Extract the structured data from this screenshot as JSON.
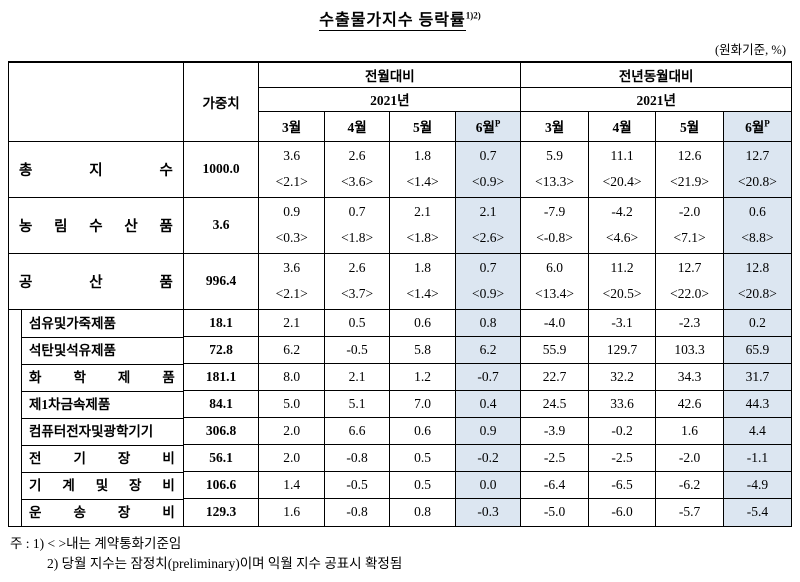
{
  "colors": {
    "highlight_column": "#dce6f1"
  },
  "title": {
    "text": "수출물가지수 등락률",
    "superscript": "1)2)"
  },
  "unit_note": "(원화기준, %)",
  "table": {
    "weight_header": "가중치",
    "group_headers": [
      "전월대비",
      "전년동월대비"
    ],
    "year_header": "2021년",
    "months": [
      "3월",
      "4월",
      "5월",
      "6월"
    ],
    "provisional_mark": "P"
  },
  "main_rows": [
    {
      "label": "총 지 수",
      "weight": "1000.0",
      "mom": [
        [
          "3.6",
          "<2.1>"
        ],
        [
          "2.6",
          "<3.6>"
        ],
        [
          "1.8",
          "<1.4>"
        ],
        [
          "0.7",
          "<0.9>"
        ]
      ],
      "yoy": [
        [
          "5.9",
          "<13.3>"
        ],
        [
          "11.1",
          "<20.4>"
        ],
        [
          "12.6",
          "<21.9>"
        ],
        [
          "12.7",
          "<20.8>"
        ]
      ]
    },
    {
      "label": "농 림 수 산 품",
      "weight": "3.6",
      "mom": [
        [
          "0.9",
          "<0.3>"
        ],
        [
          "0.7",
          "<1.8>"
        ],
        [
          "2.1",
          "<1.8>"
        ],
        [
          "2.1",
          "<2.6>"
        ]
      ],
      "yoy": [
        [
          "-7.9",
          "<-0.8>"
        ],
        [
          "-4.2",
          "<4.6>"
        ],
        [
          "-2.0",
          "<7.1>"
        ],
        [
          "0.6",
          "<8.8>"
        ]
      ]
    },
    {
      "label": "공 산 품",
      "weight": "996.4",
      "mom": [
        [
          "3.6",
          "<2.1>"
        ],
        [
          "2.6",
          "<3.7>"
        ],
        [
          "1.8",
          "<1.4>"
        ],
        [
          "0.7",
          "<0.9>"
        ]
      ],
      "yoy": [
        [
          "6.0",
          "<13.4>"
        ],
        [
          "11.2",
          "<20.5>"
        ],
        [
          "12.7",
          "<22.0>"
        ],
        [
          "12.8",
          "<20.8>"
        ]
      ]
    }
  ],
  "sub_rows": [
    {
      "label": "섬유및가죽제품",
      "weight": "18.1",
      "mom": [
        "2.1",
        "0.5",
        "0.6",
        "0.8"
      ],
      "yoy": [
        "-4.0",
        "-3.1",
        "-2.3",
        "0.2"
      ]
    },
    {
      "label": "석탄및석유제품",
      "weight": "72.8",
      "mom": [
        "6.2",
        "-0.5",
        "5.8",
        "6.2"
      ],
      "yoy": [
        "55.9",
        "129.7",
        "103.3",
        "65.9"
      ]
    },
    {
      "label": "화 학 제 품",
      "weight": "181.1",
      "mom": [
        "8.0",
        "2.1",
        "1.2",
        "-0.7"
      ],
      "yoy": [
        "22.7",
        "32.2",
        "34.3",
        "31.7"
      ]
    },
    {
      "label": "제1차금속제품",
      "weight": "84.1",
      "mom": [
        "5.0",
        "5.1",
        "7.0",
        "0.4"
      ],
      "yoy": [
        "24.5",
        "33.6",
        "42.6",
        "44.3"
      ]
    },
    {
      "label": "컴퓨터전자및광학기기",
      "weight": "306.8",
      "mom": [
        "2.0",
        "6.6",
        "0.6",
        "0.9"
      ],
      "yoy": [
        "-3.9",
        "-0.2",
        "1.6",
        "4.4"
      ]
    },
    {
      "label": "전 기 장 비",
      "weight": "56.1",
      "mom": [
        "2.0",
        "-0.8",
        "0.5",
        "-0.2"
      ],
      "yoy": [
        "-2.5",
        "-2.5",
        "-2.0",
        "-1.1"
      ]
    },
    {
      "label": "기 계 및 장 비",
      "weight": "106.6",
      "mom": [
        "1.4",
        "-0.5",
        "0.5",
        "0.0"
      ],
      "yoy": [
        "-6.4",
        "-6.5",
        "-6.2",
        "-4.9"
      ]
    },
    {
      "label": "운 송 장 비",
      "weight": "129.3",
      "mom": [
        "1.6",
        "-0.8",
        "0.8",
        "-0.3"
      ],
      "yoy": [
        "-5.0",
        "-6.0",
        "-5.7",
        "-5.4"
      ]
    }
  ],
  "notes": [
    "주 : 1) < >내는 계약통화기준임",
    "2) 당월 지수는 잠정치(preliminary)이며 익월 지수 공표시 확정됨"
  ]
}
